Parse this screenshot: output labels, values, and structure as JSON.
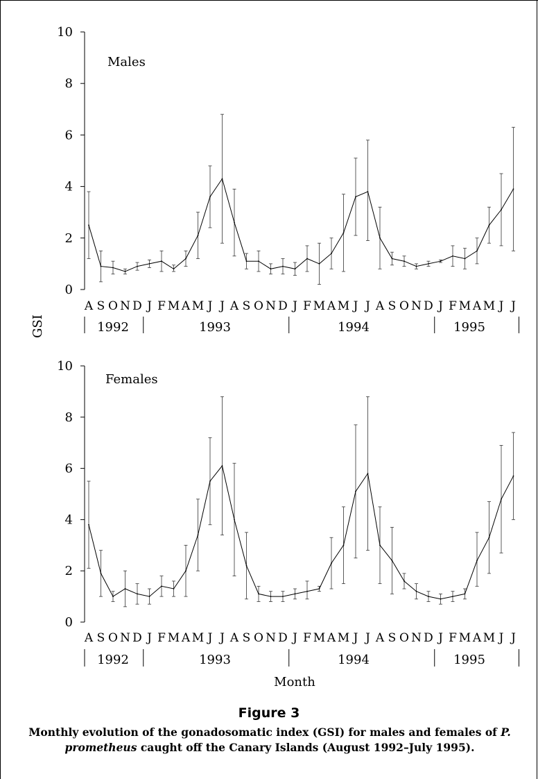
{
  "chart_data": [
    {
      "type": "line",
      "panel_label": "Males",
      "ylabel": "GSI",
      "xlabel": "",
      "ylim": [
        0,
        10
      ],
      "yticks": [
        0,
        2,
        4,
        6,
        8,
        10
      ],
      "month_labels": [
        "A",
        "S",
        "O",
        "N",
        "D",
        "J",
        "F",
        "M",
        "A",
        "M",
        "J",
        "J",
        "A",
        "S",
        "O",
        "N",
        "D",
        "J",
        "F",
        "M",
        "A",
        "M",
        "J",
        "J",
        "A",
        "S",
        "O",
        "N",
        "D",
        "J",
        "F",
        "M",
        "A",
        "M",
        "J",
        "J"
      ],
      "years": [
        "1992",
        "1993",
        "1994",
        "1995"
      ],
      "series": [
        {
          "values": [
            2.5,
            0.9,
            0.85,
            0.7,
            0.9,
            1.0,
            1.1,
            0.8,
            1.2,
            2.1,
            3.6,
            4.3,
            2.6,
            1.1,
            1.1,
            0.8,
            0.9,
            0.8,
            1.2,
            1.0,
            1.4,
            2.2,
            3.6,
            3.8,
            2.0,
            1.2,
            1.1,
            0.9,
            1.0,
            1.1,
            1.3,
            1.2,
            1.5,
            2.5,
            3.1,
            3.9
          ],
          "error_upper": [
            3.8,
            1.5,
            1.1,
            0.8,
            1.05,
            1.15,
            1.5,
            0.95,
            1.5,
            3.0,
            4.8,
            6.8,
            3.9,
            1.4,
            1.5,
            1.0,
            1.2,
            1.05,
            1.7,
            1.8,
            2.0,
            3.7,
            5.1,
            5.8,
            3.2,
            1.45,
            1.3,
            1.0,
            1.1,
            1.15,
            1.7,
            1.6,
            2.0,
            3.2,
            4.5,
            6.3
          ],
          "error_lower": [
            1.2,
            0.3,
            0.6,
            0.6,
            0.75,
            0.85,
            0.7,
            0.7,
            0.9,
            1.2,
            2.4,
            1.8,
            1.3,
            0.8,
            0.7,
            0.6,
            0.6,
            0.55,
            0.7,
            0.2,
            0.8,
            0.7,
            2.1,
            1.9,
            0.8,
            0.95,
            0.9,
            0.8,
            0.9,
            1.05,
            0.9,
            0.8,
            1.0,
            1.8,
            1.7,
            1.5
          ]
        }
      ]
    },
    {
      "type": "line",
      "panel_label": "Females",
      "ylabel": "",
      "xlabel": "Month",
      "ylim": [
        0,
        10
      ],
      "yticks": [
        0,
        2,
        4,
        6,
        8,
        10
      ],
      "month_labels": [
        "A",
        "S",
        "O",
        "N",
        "D",
        "J",
        "F",
        "M",
        "A",
        "M",
        "J",
        "J",
        "A",
        "S",
        "O",
        "N",
        "D",
        "J",
        "F",
        "M",
        "A",
        "M",
        "J",
        "J",
        "A",
        "S",
        "O",
        "N",
        "D",
        "J",
        "F",
        "M",
        "A",
        "M",
        "J",
        "J"
      ],
      "years": [
        "1992",
        "1993",
        "1994",
        "1995"
      ],
      "series": [
        {
          "values": [
            3.8,
            1.9,
            1.0,
            1.3,
            1.1,
            1.0,
            1.4,
            1.3,
            2.0,
            3.4,
            5.5,
            6.1,
            4.0,
            2.2,
            1.1,
            1.0,
            1.0,
            1.1,
            1.2,
            1.3,
            2.3,
            3.0,
            5.1,
            5.8,
            3.0,
            2.4,
            1.6,
            1.2,
            1.0,
            0.9,
            1.0,
            1.1,
            2.4,
            3.3,
            4.8,
            5.7
          ],
          "error_upper": [
            5.5,
            2.8,
            1.2,
            2.0,
            1.5,
            1.3,
            1.8,
            1.6,
            3.0,
            4.8,
            7.2,
            8.8,
            6.2,
            3.5,
            1.4,
            1.2,
            1.2,
            1.3,
            1.6,
            1.4,
            3.3,
            4.5,
            7.7,
            8.8,
            4.5,
            3.7,
            1.9,
            1.5,
            1.2,
            1.1,
            1.2,
            1.3,
            3.5,
            4.7,
            6.9,
            7.4
          ],
          "error_lower": [
            2.1,
            1.0,
            0.8,
            0.6,
            0.7,
            0.7,
            1.0,
            1.0,
            1.0,
            2.0,
            3.8,
            3.4,
            1.8,
            0.9,
            0.8,
            0.8,
            0.8,
            0.9,
            0.9,
            1.2,
            1.3,
            1.5,
            2.5,
            2.8,
            1.5,
            1.1,
            1.3,
            0.9,
            0.8,
            0.7,
            0.8,
            0.9,
            1.4,
            1.9,
            2.7,
            4.0
          ]
        }
      ]
    }
  ],
  "figure": {
    "title": "Figure 3",
    "caption_before": "Monthly evolution of the gonadosomatic index (GSI) for males and females of ",
    "caption_species": "P. prometheus",
    "caption_after": " caught off the Canary Islands (August 1992–July 1995)."
  }
}
